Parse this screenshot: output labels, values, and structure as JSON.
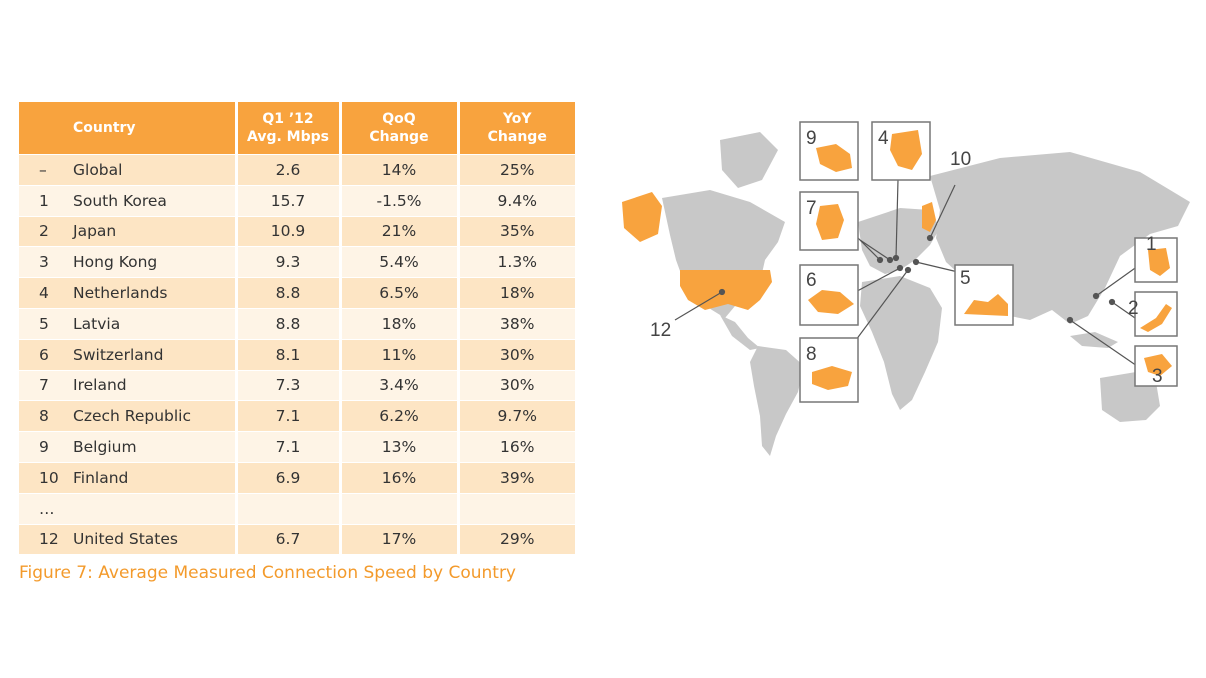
{
  "table": {
    "headers": {
      "country": "Country",
      "avg_line1": "Q1 ’12",
      "avg_line2": "Avg. Mbps",
      "qoq_line1": "QoQ",
      "qoq_line2": "Change",
      "yoy_line1": "YoY",
      "yoy_line2": "Change"
    },
    "rows": [
      {
        "rank": "–",
        "country": "Global",
        "mbps": "2.6",
        "qoq": "14%",
        "yoy": "25%"
      },
      {
        "rank": "1",
        "country": "South Korea",
        "mbps": "15.7",
        "qoq": "-1.5%",
        "yoy": "9.4%"
      },
      {
        "rank": "2",
        "country": "Japan",
        "mbps": "10.9",
        "qoq": "21%",
        "yoy": "35%"
      },
      {
        "rank": "3",
        "country": "Hong Kong",
        "mbps": "9.3",
        "qoq": "5.4%",
        "yoy": "1.3%"
      },
      {
        "rank": "4",
        "country": "Netherlands",
        "mbps": "8.8",
        "qoq": "6.5%",
        "yoy": "18%"
      },
      {
        "rank": "5",
        "country": "Latvia",
        "mbps": "8.8",
        "qoq": "18%",
        "yoy": "38%"
      },
      {
        "rank": "6",
        "country": "Switzerland",
        "mbps": "8.1",
        "qoq": "11%",
        "yoy": "30%"
      },
      {
        "rank": "7",
        "country": "Ireland",
        "mbps": "7.3",
        "qoq": "3.4%",
        "yoy": "30%"
      },
      {
        "rank": "8",
        "country": "Czech Republic",
        "mbps": "7.1",
        "qoq": "6.2%",
        "yoy": "9.7%"
      },
      {
        "rank": "9",
        "country": "Belgium",
        "mbps": "7.1",
        "qoq": "13%",
        "yoy": "16%"
      },
      {
        "rank": "10",
        "country": "Finland",
        "mbps": "6.9",
        "qoq": "16%",
        "yoy": "39%"
      },
      {
        "rank": "…",
        "country": "",
        "mbps": "",
        "qoq": "",
        "yoy": ""
      },
      {
        "rank": "12",
        "country": "United States",
        "mbps": "6.7",
        "qoq": "17%",
        "yoy": "29%"
      }
    ]
  },
  "caption": "Figure 7: Average Measured Connection Speed by Country",
  "map": {
    "callout_numbers": [
      "1",
      "2",
      "3",
      "4",
      "5",
      "6",
      "7",
      "8",
      "9",
      "10",
      "12"
    ],
    "land_color": "#c8c8c8",
    "highlight_color": "#f8a33e"
  }
}
